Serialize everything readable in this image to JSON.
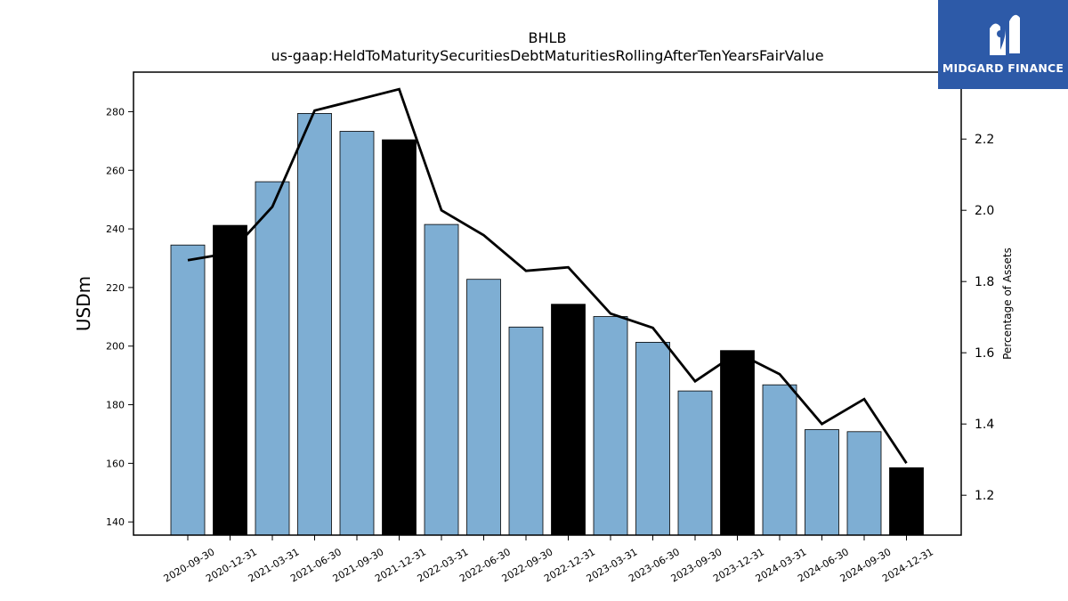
{
  "logo": {
    "text": "MIDGARD FINANCE",
    "color": "#2d5aa8"
  },
  "chart_data": {
    "type": "bar",
    "title": "BHLB",
    "subtitle": "us-gaap:HeldToMaturitySecuritiesDebtMaturitiesRollingAfterTenYearsFairValue",
    "ylabel": "USDm",
    "y2label": "Percentage of Assets",
    "ylim": [
      135.5,
      293.5
    ],
    "y2lim": [
      1.088,
      2.388
    ],
    "yticks": [
      140,
      160,
      180,
      200,
      220,
      240,
      260,
      280
    ],
    "y2ticks": [
      1.2,
      1.4,
      1.6,
      1.8,
      2.0,
      2.2
    ],
    "categories": [
      "2020-09-30",
      "2020-12-31",
      "2021-03-31",
      "2021-06-30",
      "2021-09-30",
      "2021-12-31",
      "2022-03-31",
      "2022-06-30",
      "2022-09-30",
      "2022-12-31",
      "2023-03-31",
      "2023-06-30",
      "2023-09-30",
      "2023-12-31",
      "2024-03-31",
      "2024-06-30",
      "2024-09-30",
      "2024-12-31"
    ],
    "series": [
      {
        "values": [
          234.5,
          241.2,
          256.1,
          279.4,
          273.3,
          270.4,
          241.5,
          222.8,
          206.5,
          214.3,
          210.1,
          201.3,
          184.7,
          198.5,
          186.8,
          171.5,
          170.8,
          158.5
        ],
        "axis": "left"
      },
      {
        "values": [
          1.86,
          1.88,
          2.01,
          2.28,
          2.31,
          2.34,
          2.0,
          1.93,
          1.83,
          1.84,
          1.71,
          1.67,
          1.52,
          1.6,
          1.54,
          1.4,
          1.47,
          1.29
        ],
        "axis": "right"
      }
    ],
    "bar_colors": {
      "quarter": "#7eaed3",
      "year_end": "#000000"
    },
    "line_color": "#000000",
    "grid": false
  }
}
